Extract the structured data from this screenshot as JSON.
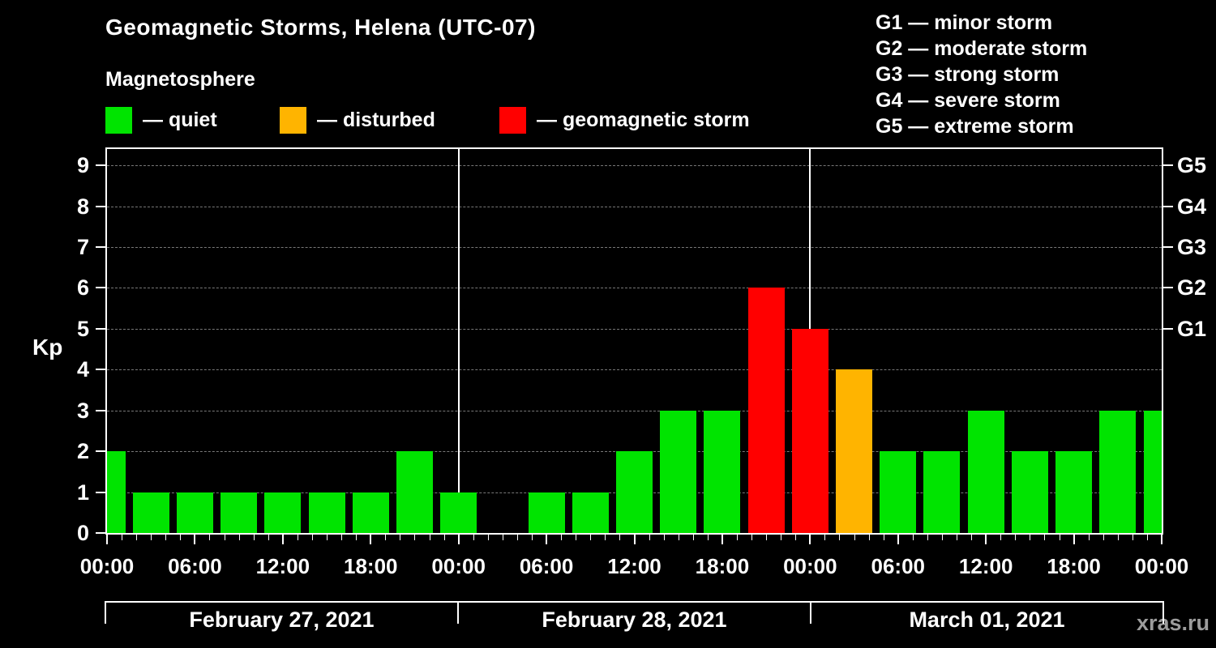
{
  "chart_data": {
    "type": "bar",
    "title": "Geomagnetic Storms, Helena (UTC-07)",
    "subtitle": "Magnetosphere",
    "ylabel": "Kp",
    "ylim": [
      0,
      9.4
    ],
    "y_ticks": [
      0,
      1,
      2,
      3,
      4,
      5,
      6,
      7,
      8,
      9
    ],
    "grid_dashed_levels": [
      1,
      2,
      3,
      4,
      5,
      6,
      7,
      8,
      9
    ],
    "interval_hours": 3,
    "x_tick_labels": [
      "00:00",
      "06:00",
      "12:00",
      "18:00",
      "00:00",
      "06:00",
      "12:00",
      "18:00",
      "00:00",
      "06:00",
      "12:00",
      "18:00",
      "00:00"
    ],
    "days": [
      {
        "label": "February 27, 2021",
        "kp": [
          2,
          1,
          1,
          1,
          1,
          1,
          1,
          2
        ]
      },
      {
        "label": "February 28, 2021",
        "kp": [
          1,
          null,
          1,
          1,
          2,
          3,
          3,
          6
        ]
      },
      {
        "label": "March 01, 2021",
        "kp": [
          5,
          4,
          2,
          2,
          3,
          2,
          2,
          3
        ]
      }
    ],
    "next_day_partial_kp": 3,
    "right_axis_labels": [
      {
        "kp": 5,
        "label": "G1"
      },
      {
        "kp": 6,
        "label": "G2"
      },
      {
        "kp": 7,
        "label": "G3"
      },
      {
        "kp": 8,
        "label": "G4"
      },
      {
        "kp": 9,
        "label": "G5"
      }
    ],
    "status_legend": [
      {
        "key": "quiet",
        "label": "— quiet",
        "color": "#00e400"
      },
      {
        "key": "disturbed",
        "label": "— disturbed",
        "color": "#ffb400"
      },
      {
        "key": "storm",
        "label": "— geomagnetic storm",
        "color": "#ff0000"
      }
    ],
    "thresholds": {
      "disturbed_kp": 4,
      "storm_min_kp": 5
    },
    "g_scale_legend": [
      "G1 — minor storm",
      "G2 — moderate storm",
      "G3 — strong storm",
      "G4 — severe storm",
      "G5 — extreme storm"
    ],
    "grid_color": "#787878",
    "watermark": "xras.ru"
  }
}
